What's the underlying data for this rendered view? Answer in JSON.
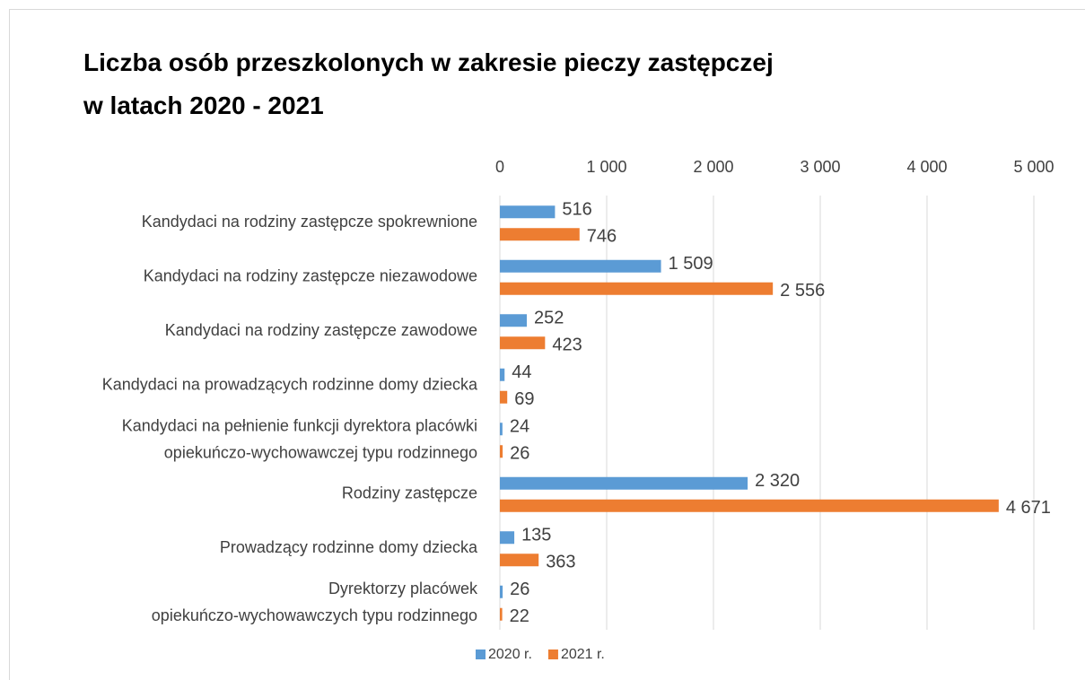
{
  "chart_data": {
    "type": "bar",
    "orientation": "horizontal",
    "title": "Liczba osób przeszkolonych w zakresie pieczy zastępczej\nw latach 2020 - 2021",
    "categories": [
      "Kandydaci na rodziny zastępcze spokrewnione",
      "Kandydaci na rodziny zastępcze niezawodowe",
      "Kandydaci na rodziny zastępcze zawodowe",
      "Kandydaci na prowadzących rodzinne domy dziecka",
      "Kandydaci na pełnienie funkcji dyrektora placówki\nopiekuńczo-wychowawczej typu rodzinnego",
      "Rodziny zastępcze",
      "Prowadzący rodzinne domy dziecka",
      "Dyrektorzy placówek\nopiekuńczo-wychowawczych typu rodzinnego"
    ],
    "series": [
      {
        "name": "2020 r.",
        "color": "#5b9bd5",
        "values": [
          516,
          1509,
          252,
          44,
          24,
          2320,
          135,
          26
        ],
        "value_labels": [
          "516",
          "1 509",
          "252",
          "44",
          "24",
          "2 320",
          "135",
          "26"
        ]
      },
      {
        "name": "2021 r.",
        "color": "#ed7d31",
        "values": [
          746,
          2556,
          423,
          69,
          26,
          4671,
          363,
          22
        ],
        "value_labels": [
          "746",
          "2 556",
          "423",
          "69",
          "26",
          "4 671",
          "363",
          "22"
        ]
      }
    ],
    "xlim": [
      0,
      5000
    ],
    "xticks": [
      0,
      {
        "value": 1000,
        "label": "1 000"
      },
      {
        "value": 2000,
        "label": "2 000"
      },
      {
        "value": 3000,
        "label": "3 000"
      },
      {
        "value": 4000,
        "label": "4 000"
      },
      {
        "value": 5000,
        "label": "5 000"
      }
    ],
    "grid": true,
    "legend": "bottom"
  }
}
